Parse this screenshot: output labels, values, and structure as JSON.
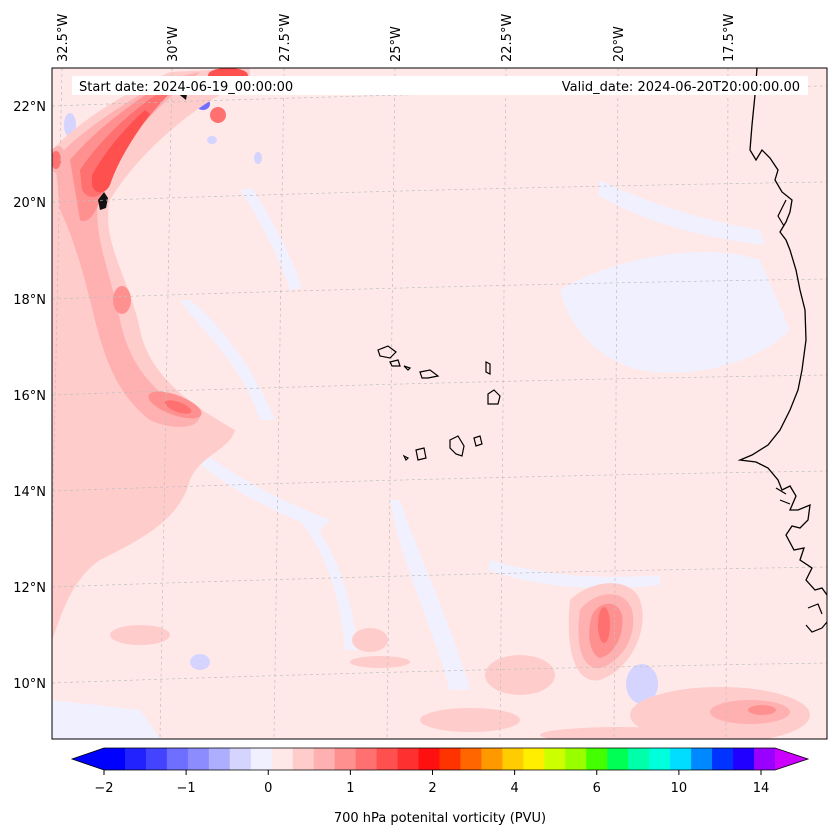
{
  "header": {
    "start_date": "Start date: 2024-06-19_00:00:00",
    "valid_date": "Valid_date: 2024-06-20T20:00:00.00"
  },
  "map": {
    "longitude_labels": [
      "32.5°W",
      "30°W",
      "27.5°W",
      "25°W",
      "22.5°W",
      "20°W",
      "17.5°W"
    ],
    "latitude_labels": [
      "22°N",
      "20°N",
      "18°N",
      "16°N",
      "14°N",
      "12°N",
      "10°N"
    ],
    "gridlines": true
  },
  "colorbar": {
    "tick_labels": [
      "−2",
      "−1",
      "0",
      "1",
      "2",
      "4",
      "6",
      "10",
      "14"
    ],
    "label": "700 hPa potenital vorticity (PVU)",
    "colors": [
      "#0000ff",
      "#2222ff",
      "#4444ff",
      "#6f6fff",
      "#8c8cff",
      "#aeaeff",
      "#d4d4ff",
      "#f0f0ff",
      "#ffe8e8",
      "#ffcccc",
      "#ffb0b0",
      "#ff9090",
      "#ff7070",
      "#ff5050",
      "#ff3030",
      "#ff1010",
      "#ff3300",
      "#ff6600",
      "#ff9900",
      "#ffcc00",
      "#ffee00",
      "#ccff00",
      "#99ff00",
      "#44ff00",
      "#00ff55",
      "#00ffaa",
      "#00ffdd",
      "#00ddff",
      "#0088ff",
      "#0033ff",
      "#2200ff",
      "#9900ff"
    ],
    "extend_colors": {
      "min": "#0000ff",
      "max": "#cc00ff"
    }
  }
}
